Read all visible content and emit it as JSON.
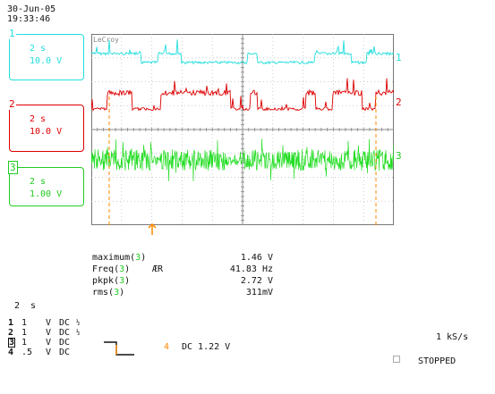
{
  "header": {
    "date": "30-Jun-05",
    "time": "19:33:46"
  },
  "colors": {
    "ch1": "#22dddd",
    "ch2": "#dd0000",
    "ch3": "#22dd22",
    "ch4": "#ff8800",
    "grid": "#999999"
  },
  "channels": [
    {
      "num": "1",
      "timebase": "2 s",
      "volts": "10.0 V"
    },
    {
      "num": "2",
      "timebase": "2 s",
      "volts": "10.0 V"
    },
    {
      "num": "3",
      "timebase": "2 s",
      "volts": "1.00 V"
    }
  ],
  "scope": {
    "brand": "LeCroy",
    "trace_labels": [
      "1",
      "2",
      "3"
    ]
  },
  "measurements": [
    {
      "name": "maximum(",
      "ch": "3",
      "close": ")",
      "flag": "",
      "value": "1.46 V"
    },
    {
      "name": "Freq(",
      "ch": "3",
      "close": ")",
      "flag": "ÆR",
      "value": "41.83 Hz"
    },
    {
      "name": "pkpk(",
      "ch": "3",
      "close": ")",
      "flag": "",
      "value": "2.72 V"
    },
    {
      "name": "rms(",
      "ch": "3",
      "close": ")",
      "flag": "",
      "value": "311mV"
    }
  ],
  "footer": {
    "timebase": "2  s",
    "channel_rows": [
      {
        "num": "1",
        "v": "1",
        "unit": "V",
        "coupling": "DC",
        "bw": "½"
      },
      {
        "num": "2",
        "v": "1",
        "unit": "V",
        "coupling": "DC",
        "bw": "½"
      },
      {
        "num": "3",
        "v": "1",
        "unit": "V",
        "coupling": "DC",
        "bw": ""
      },
      {
        "num": "4",
        "v": ".5",
        "unit": "V",
        "coupling": "DC",
        "bw": ""
      }
    ],
    "trigger_channel": "4",
    "trigger_level": "DC 1.22 V",
    "sample_rate": "1 kS/s",
    "status": "STOPPED"
  }
}
